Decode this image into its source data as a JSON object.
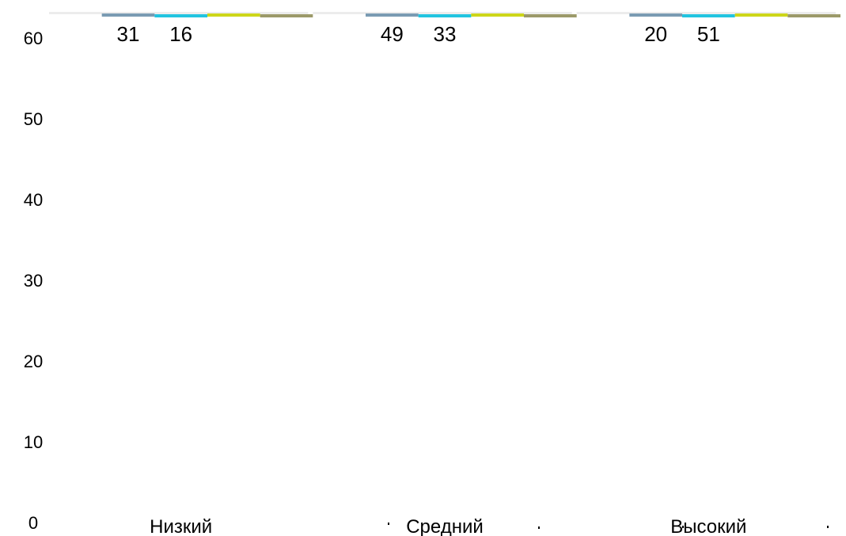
{
  "chart_data": {
    "type": "bar",
    "title": "",
    "xlabel": "",
    "ylabel": "",
    "ylim": [
      0,
      60
    ],
    "yticks": [
      0,
      10,
      20,
      30,
      40,
      50,
      60
    ],
    "grid": false,
    "legend": "none",
    "categories": [
      "Низкий",
      "Средний",
      "Высокий"
    ],
    "series": [
      {
        "color": "#7a9bb3",
        "values": [
          31,
          49,
          20
        ],
        "labels": [
          "31",
          "49",
          "20"
        ]
      },
      {
        "color": "#22c4e0",
        "values": [
          16,
          33,
          51
        ],
        "labels": [
          "16",
          "33",
          "51"
        ]
      },
      {
        "color": "#cdd61a",
        "values": [
          null,
          null,
          null
        ],
        "labels": [
          "",
          "",
          ""
        ]
      },
      {
        "color": "#9c9a6a",
        "values": [
          null,
          null,
          null
        ],
        "labels": [
          "",
          "",
          ""
        ]
      }
    ]
  }
}
